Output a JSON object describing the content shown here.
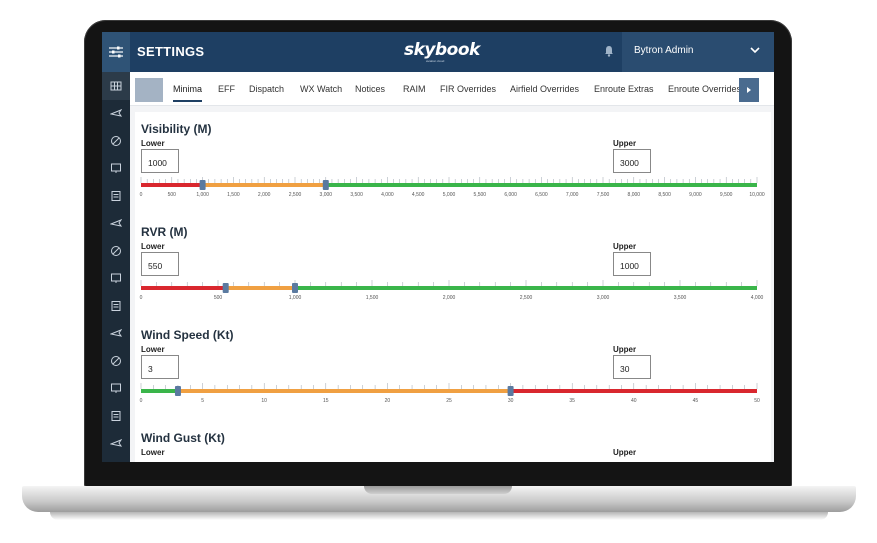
{
  "topbar": {
    "title": "SETTINGS",
    "logo": "skybook",
    "logo_sub": "aviation cloud",
    "user_name": "Bytron Admin"
  },
  "sidebar": {
    "icons": [
      "grid-icon",
      "plane-icon",
      "plane-alert-icon",
      "globe-icon",
      "monitor-icon",
      "document-icon",
      "plane-cloud-icon",
      "weather-icon",
      "pin-icon",
      "edit-icon",
      "bar-chart-icon",
      "table-icon",
      "monitor-settings-icon",
      "gear-icon"
    ]
  },
  "tabs": [
    "Minima",
    "EFF",
    "Dispatch",
    "WX Watch",
    "Notices",
    "RAIM",
    "FIR Overrides",
    "Airfield Overrides",
    "Enroute Extras",
    "Enroute Overrides"
  ],
  "active_tab": "Minima",
  "colors": {
    "red": "#d9272e",
    "orange": "#f0a042",
    "green": "#3ab54a",
    "handle": "#5b7aa0",
    "navy": "#1e3f63"
  },
  "sections": [
    {
      "title": "Visibility (M)",
      "lower_label": "Lower",
      "upper_label": "Upper",
      "lower": "1000",
      "upper": "3000",
      "min": 0,
      "max": 10000,
      "lower_value": 1000,
      "upper_value": 3000,
      "order": [
        "red",
        "orange",
        "green"
      ],
      "ticks": [
        "0",
        "500",
        "1,000",
        "1,500",
        "2,000",
        "2,500",
        "3,000",
        "3,500",
        "4,000",
        "4,500",
        "5,000",
        "5,500",
        "6,000",
        "6,500",
        "7,000",
        "7,500",
        "8,000",
        "8,500",
        "9,000",
        "9,500",
        "10,000"
      ]
    },
    {
      "title": "RVR (M)",
      "lower_label": "Lower",
      "upper_label": "Upper",
      "lower": "550",
      "upper": "1000",
      "min": 0,
      "max": 4000,
      "lower_value": 550,
      "upper_value": 1000,
      "order": [
        "red",
        "orange",
        "green"
      ],
      "ticks": [
        "0",
        "500",
        "1,000",
        "1,500",
        "2,000",
        "2,500",
        "3,000",
        "3,500",
        "4,000"
      ]
    },
    {
      "title": "Wind Speed (Kt)",
      "lower_label": "Lower",
      "upper_label": "Upper",
      "lower": "3",
      "upper": "30",
      "min": 0,
      "max": 50,
      "lower_value": 3,
      "upper_value": 30,
      "order": [
        "green",
        "orange",
        "red"
      ],
      "ticks": [
        "0",
        "5",
        "10",
        "15",
        "20",
        "25",
        "30",
        "35",
        "40",
        "45",
        "50"
      ]
    },
    {
      "title": "Wind Gust (Kt)",
      "lower_label": "Lower",
      "upper_label": "Upper"
    }
  ]
}
